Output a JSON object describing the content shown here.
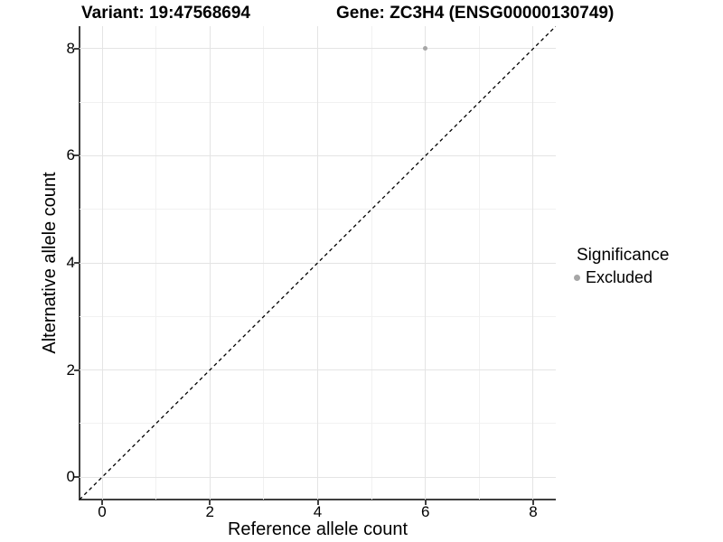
{
  "titles": {
    "variant": "Variant: 19:47568694",
    "gene": "Gene: ZC3H4 (ENSG00000130749)"
  },
  "axes": {
    "x": {
      "label": "Reference allele count"
    },
    "y": {
      "label": "Alternative allele count"
    }
  },
  "legend": {
    "title": "Significance",
    "items": [
      {
        "label": "Excluded",
        "color": "#a6a6a6"
      }
    ]
  },
  "colors": {
    "background": "#ffffff",
    "axis_line": "#3f3f3f",
    "grid_major": "#e4e4e4",
    "grid_minor": "#f1f1f1",
    "point": "#a6a6a6",
    "identity_line": "#000000",
    "text": "#000000"
  },
  "chart_data": {
    "type": "scatter",
    "title": "Variant: 19:47568694 — Gene: ZC3H4 (ENSG00000130749)",
    "xlabel": "Reference allele count",
    "ylabel": "Alternative allele count",
    "xlim": [
      -0.42,
      8.42
    ],
    "ylim": [
      -0.42,
      8.42
    ],
    "x_major_ticks": [
      0,
      2,
      4,
      6,
      8
    ],
    "x_minor_ticks": [
      1,
      3,
      5,
      7
    ],
    "y_major_ticks": [
      0,
      2,
      4,
      6,
      8
    ],
    "y_minor_ticks": [
      1,
      3,
      5,
      7
    ],
    "grid": "major and minor gridlines, light gray on white panel",
    "legend_position": "right-center",
    "legend_title": "Significance",
    "series": [
      {
        "name": "Excluded",
        "color": "#a6a6a6",
        "points": [
          {
            "x": 6,
            "y": 8
          }
        ]
      }
    ],
    "reference_line": {
      "type": "identity (y = x)",
      "style": "dashed",
      "color": "#000000",
      "from": [
        -0.42,
        -0.42
      ],
      "to": [
        8.42,
        8.42
      ]
    }
  }
}
